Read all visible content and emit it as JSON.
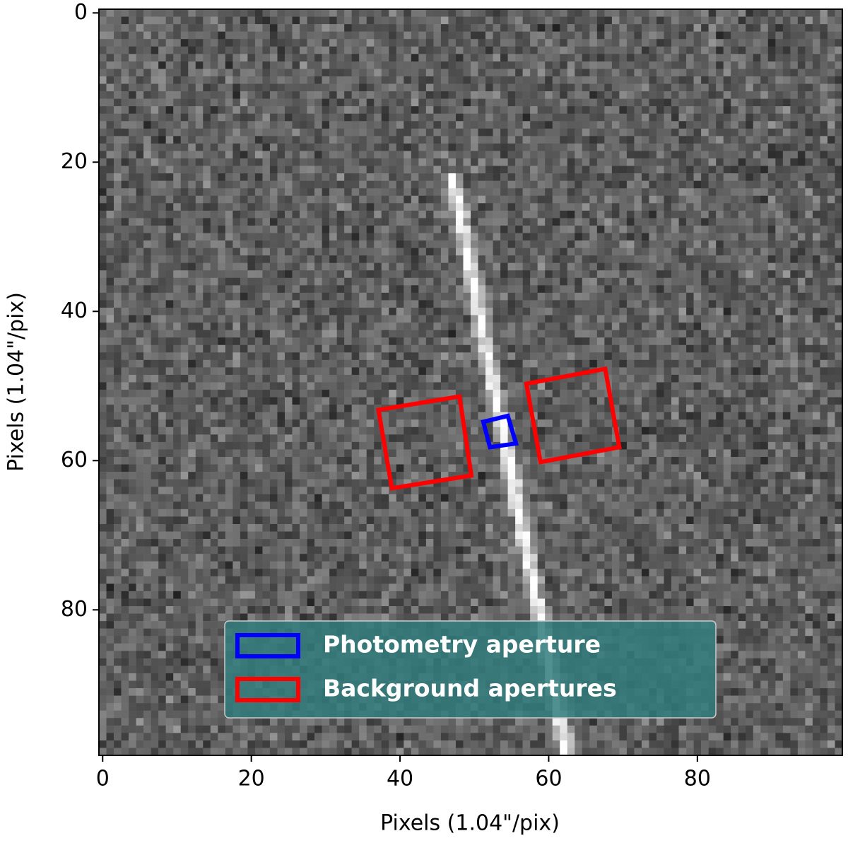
{
  "chart_data": {
    "type": "image",
    "xlabel": "Pixels (1.04\"/pix)",
    "ylabel": "Pixels (1.04\"/pix)",
    "xlim": [
      -0.5,
      99.5
    ],
    "ylim": [
      99.5,
      -0.5
    ],
    "xticks": [
      0,
      20,
      40,
      60,
      80
    ],
    "yticks": [
      0,
      20,
      40,
      60,
      80
    ],
    "image": {
      "size": 100,
      "streak": {
        "x": [
          47,
          62.5
        ],
        "y": [
          22,
          99.5
        ]
      }
    },
    "legend": "lower center",
    "series": [
      {
        "name": "Photometry aperture",
        "color": "#0000ff",
        "polygons": [
          {
            "x": [
              51.2,
              54.5,
              55.6,
              52.1
            ],
            "y": [
              54.8,
              54.0,
              57.7,
              58.2
            ]
          }
        ]
      },
      {
        "name": "Background apertures",
        "color": "#ff0000",
        "polygons": [
          {
            "x": [
              37.1,
              48.0,
              49.6,
              38.9
            ],
            "y": [
              53.2,
              51.4,
              62.0,
              63.7
            ]
          },
          {
            "x": [
              57.0,
              67.6,
              69.5,
              58.9
            ],
            "y": [
              49.7,
              47.7,
              58.2,
              60.2
            ]
          }
        ]
      }
    ]
  }
}
